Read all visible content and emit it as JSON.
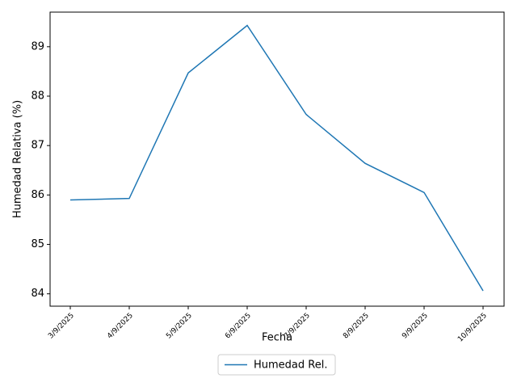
{
  "chart_data": {
    "type": "line",
    "categories": [
      "3/9/2025",
      "4/9/2025",
      "5/9/2025",
      "6/9/2025",
      "7/9/2025",
      "8/9/2025",
      "9/9/2025",
      "10/9/2025"
    ],
    "series": [
      {
        "name": "Humedad Rel.",
        "color": "#1f77b4",
        "values": [
          85.9,
          85.93,
          88.47,
          89.43,
          87.63,
          86.64,
          86.05,
          84.06
        ]
      }
    ],
    "ylabel": "Humedad Relativa (%)",
    "xlabel": "Fecha",
    "ylim": [
      83.75,
      89.7
    ],
    "yticks": [
      84,
      85,
      86,
      87,
      88,
      89
    ],
    "legend": "bottom-center"
  }
}
